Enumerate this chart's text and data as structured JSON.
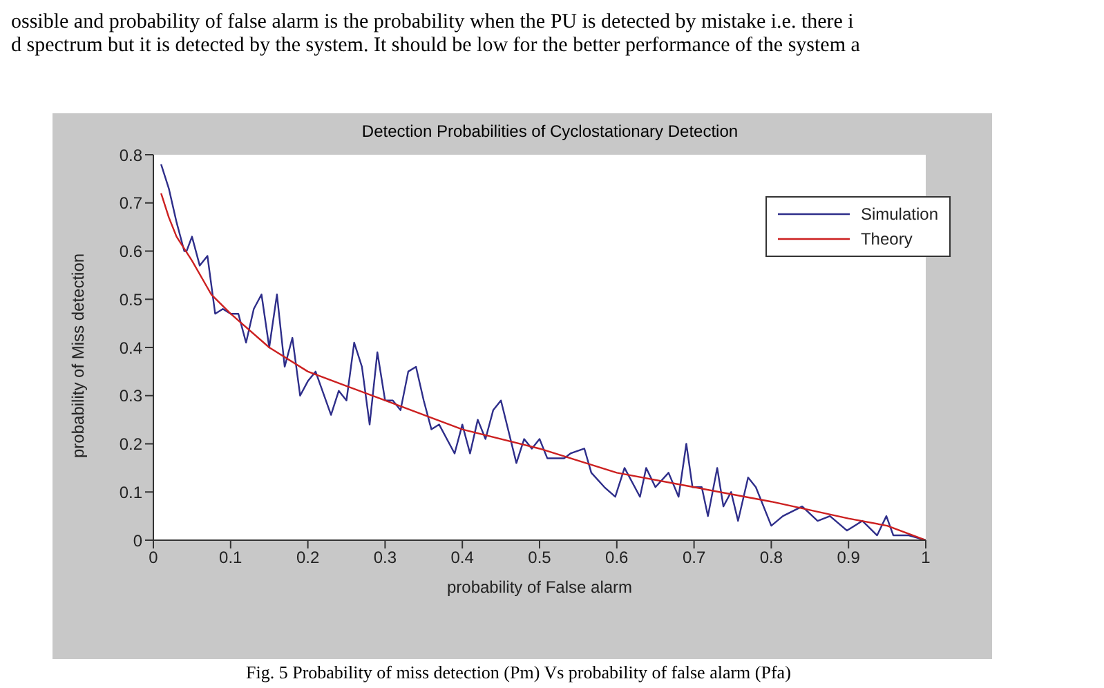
{
  "chart_data": {
    "type": "line",
    "title": "Detection Probabilities of Cyclostationary Detection",
    "xlabel": "probability of False alarm",
    "ylabel": "probability of Miss detection",
    "annotations": [
      "ossible and probability of false alarm is the probability when the PU is detected by mistake i.e. there i",
      "d spectrum but it is detected by the system. It should be low for the better performance of the system a",
      "Fig. 5 Probability of miss detection (Pm) Vs probability of false alarm (Pfa)"
    ],
    "xlim": [
      0,
      1
    ],
    "xticks": [
      0,
      0.1,
      0.2,
      0.3,
      0.4,
      0.5,
      0.6,
      0.7,
      0.8,
      0.9,
      1
    ],
    "ylim": [
      0,
      0.8
    ],
    "yticks": [
      0,
      0.1,
      0.2,
      0.3,
      0.4,
      0.5,
      0.6,
      0.7,
      0.8
    ],
    "grid": false,
    "legend": "top right",
    "marker": "none",
    "line_style": "solid",
    "series": [
      {
        "name": "Simulation",
        "color": "#2e2e8a",
        "x": [
          0.01,
          0.02,
          0.03,
          0.04,
          0.043,
          0.05,
          0.06,
          0.07,
          0.08,
          0.09,
          0.1,
          0.11,
          0.12,
          0.13,
          0.14,
          0.15,
          0.16,
          0.17,
          0.18,
          0.19,
          0.2,
          0.21,
          0.23,
          0.24,
          0.25,
          0.26,
          0.27,
          0.28,
          0.29,
          0.3,
          0.31,
          0.32,
          0.33,
          0.34,
          0.35,
          0.36,
          0.37,
          0.39,
          0.4,
          0.41,
          0.42,
          0.43,
          0.44,
          0.45,
          0.47,
          0.48,
          0.49,
          0.5,
          0.51,
          0.532,
          0.54,
          0.558,
          0.567,
          0.584,
          0.598,
          0.61,
          0.63,
          0.638,
          0.65,
          0.667,
          0.68,
          0.69,
          0.698,
          0.71,
          0.718,
          0.73,
          0.738,
          0.748,
          0.757,
          0.77,
          0.78,
          0.8,
          0.815,
          0.84,
          0.86,
          0.876,
          0.898,
          0.918,
          0.937,
          0.949,
          0.958,
          0.978,
          1
        ],
        "values": [
          0.78,
          0.73,
          0.66,
          0.6,
          0.6,
          0.63,
          0.57,
          0.59,
          0.47,
          0.48,
          0.47,
          0.47,
          0.41,
          0.48,
          0.51,
          0.4,
          0.51,
          0.36,
          0.42,
          0.3,
          0.33,
          0.35,
          0.26,
          0.31,
          0.29,
          0.41,
          0.36,
          0.24,
          0.39,
          0.29,
          0.29,
          0.27,
          0.35,
          0.36,
          0.29,
          0.23,
          0.24,
          0.18,
          0.24,
          0.18,
          0.25,
          0.21,
          0.27,
          0.29,
          0.16,
          0.21,
          0.19,
          0.21,
          0.17,
          0.17,
          0.18,
          0.19,
          0.14,
          0.11,
          0.09,
          0.15,
          0.09,
          0.15,
          0.11,
          0.14,
          0.09,
          0.2,
          0.11,
          0.11,
          0.05,
          0.15,
          0.07,
          0.1,
          0.04,
          0.13,
          0.11,
          0.03,
          0.05,
          0.07,
          0.04,
          0.05,
          0.02,
          0.04,
          0.01,
          0.05,
          0.01,
          0.01,
          0
        ]
      },
      {
        "name": "Theory",
        "color": "#cc2020",
        "x": [
          0.01,
          0.02,
          0.03,
          0.05,
          0.075,
          0.1,
          0.15,
          0.2,
          0.25,
          0.3,
          0.4,
          0.5,
          0.6,
          0.7,
          0.8,
          0.9,
          0.95,
          1
        ],
        "values": [
          0.72,
          0.67,
          0.63,
          0.58,
          0.51,
          0.47,
          0.4,
          0.35,
          0.32,
          0.29,
          0.23,
          0.19,
          0.14,
          0.11,
          0.08,
          0.045,
          0.03,
          0
        ]
      }
    ]
  }
}
